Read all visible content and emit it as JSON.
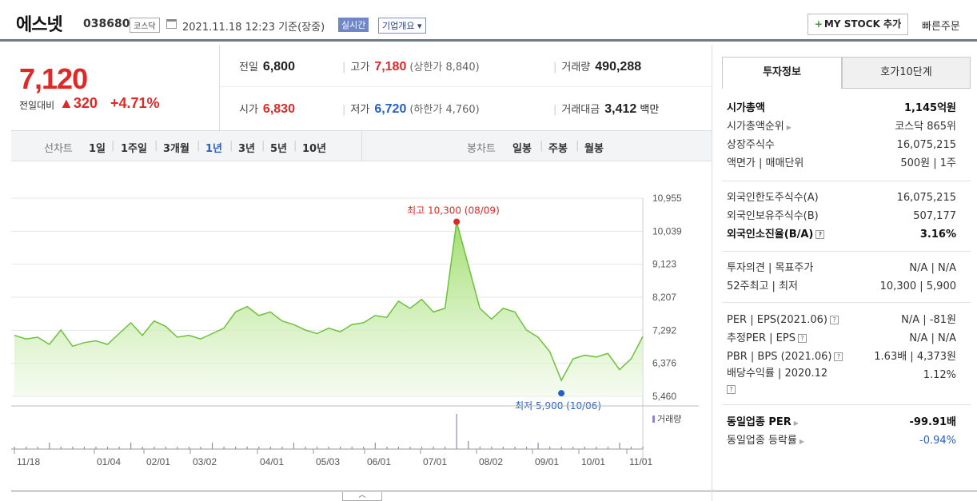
{
  "header": {
    "name": "에스넷",
    "code": "038680",
    "market": "코스닥",
    "date": "2021.11.18 12:23",
    "basis": "기준(장중)",
    "realtime": "실시간",
    "overview": "기업개요",
    "mystock": "MY STOCK 추가",
    "quick_order": "빠른주문"
  },
  "price": {
    "current": "7,120",
    "change_label": "전일대비",
    "change": "▲320",
    "percent": "+4.71%",
    "prev_label": "전일",
    "prev": "6,800",
    "high_label": "고가",
    "high": "7,180",
    "upper_limit": "(상한가 8,840)",
    "volume_label": "거래량",
    "volume": "490,288",
    "open_label": "시가",
    "open": "6,830",
    "low_label": "저가",
    "low": "6,720",
    "lower_limit": "(하한가 4,760)",
    "amount_label": "거래대금",
    "amount": "3,412",
    "amount_unit": "백만"
  },
  "period": {
    "line_label": "선차트",
    "line_opts": [
      "1일",
      "1주일",
      "3개월",
      "1년",
      "3년",
      "5년",
      "10년"
    ],
    "selected": "1년",
    "candle_label": "봉차트",
    "candle_opts": [
      "일봉",
      "주봉",
      "월봉"
    ]
  },
  "chart_data": {
    "type": "area",
    "yticks": [
      "10,955",
      "10,039",
      "9,123",
      "8,207",
      "7,292",
      "6,376",
      "5,460"
    ],
    "ylim": [
      5460,
      10955
    ],
    "xticks": [
      "11/18",
      "01/04",
      "02/01",
      "03/02",
      "04/01",
      "05/03",
      "06/01",
      "07/01",
      "08/02",
      "09/01",
      "10/01",
      "11/01"
    ],
    "high_label": "최고 10,300 (08/09)",
    "low_label": "최저 5,900 (10/06)",
    "volume_label": "거래량",
    "series": [
      {
        "x": "11/18",
        "y": 7150
      },
      {
        "x": "11/25",
        "y": 7050
      },
      {
        "x": "12/02",
        "y": 7100
      },
      {
        "x": "12/09",
        "y": 6900
      },
      {
        "x": "12/16",
        "y": 7300
      },
      {
        "x": "12/23",
        "y": 6850
      },
      {
        "x": "12/30",
        "y": 6950
      },
      {
        "x": "01/04",
        "y": 7000
      },
      {
        "x": "01/11",
        "y": 6900
      },
      {
        "x": "01/18",
        "y": 7200
      },
      {
        "x": "01/25",
        "y": 7500
      },
      {
        "x": "02/01",
        "y": 7150
      },
      {
        "x": "02/08",
        "y": 7550
      },
      {
        "x": "02/15",
        "y": 7400
      },
      {
        "x": "02/22",
        "y": 7100
      },
      {
        "x": "03/02",
        "y": 7150
      },
      {
        "x": "03/09",
        "y": 7050
      },
      {
        "x": "03/16",
        "y": 7200
      },
      {
        "x": "03/23",
        "y": 7350
      },
      {
        "x": "04/01",
        "y": 7800
      },
      {
        "x": "04/08",
        "y": 7950
      },
      {
        "x": "04/15",
        "y": 7700
      },
      {
        "x": "04/22",
        "y": 7800
      },
      {
        "x": "04/29",
        "y": 7550
      },
      {
        "x": "05/03",
        "y": 7450
      },
      {
        "x": "05/10",
        "y": 7300
      },
      {
        "x": "05/17",
        "y": 7200
      },
      {
        "x": "05/24",
        "y": 7350
      },
      {
        "x": "06/01",
        "y": 7250
      },
      {
        "x": "06/08",
        "y": 7450
      },
      {
        "x": "06/15",
        "y": 7500
      },
      {
        "x": "06/22",
        "y": 7700
      },
      {
        "x": "07/01",
        "y": 7650
      },
      {
        "x": "07/08",
        "y": 8100
      },
      {
        "x": "07/15",
        "y": 7900
      },
      {
        "x": "07/22",
        "y": 8150
      },
      {
        "x": "07/29",
        "y": 7800
      },
      {
        "x": "08/02",
        "y": 7900
      },
      {
        "x": "08/09",
        "y": 10300
      },
      {
        "x": "08/16",
        "y": 9100
      },
      {
        "x": "08/23",
        "y": 7900
      },
      {
        "x": "08/30",
        "y": 7600
      },
      {
        "x": "09/01",
        "y": 7900
      },
      {
        "x": "09/08",
        "y": 7800
      },
      {
        "x": "09/15",
        "y": 7300
      },
      {
        "x": "09/22",
        "y": 7100
      },
      {
        "x": "10/01",
        "y": 6700
      },
      {
        "x": "10/06",
        "y": 5900
      },
      {
        "x": "10/13",
        "y": 6500
      },
      {
        "x": "10/20",
        "y": 6600
      },
      {
        "x": "10/27",
        "y": 6550
      },
      {
        "x": "11/01",
        "y": 6650
      },
      {
        "x": "11/08",
        "y": 6200
      },
      {
        "x": "11/15",
        "y": 6500
      },
      {
        "x": "11/18",
        "y": 7120
      }
    ]
  },
  "tabs": [
    "투자정보",
    "호가10단계"
  ],
  "invest": [
    {
      "k": "시가총액",
      "v": "1,145억원",
      "bold": true
    },
    {
      "k": "시가총액순위",
      "v": "코스닥 865위",
      "tri": true
    },
    {
      "k": "상장주식수",
      "v": "16,075,215"
    },
    {
      "k": "액면가 | 매매단위",
      "v": "500원 | 1주"
    }
  ],
  "foreign": [
    {
      "k": "외국인한도주식수(A)",
      "v": "16,075,215"
    },
    {
      "k": "외국인보유주식수(B)",
      "v": "507,177"
    },
    {
      "k": "외국인소진율(B/A)",
      "v": "3.16%",
      "bold": true,
      "q": true
    }
  ],
  "opinion": [
    {
      "k": "투자의견 | 목표주가",
      "v": "N/A | N/A"
    },
    {
      "k": "52주최고 | 최저",
      "v": "10,300 | 5,900"
    }
  ],
  "valuation": [
    {
      "k": "PER | EPS(2021.06)",
      "v": "N/A | -81원",
      "q": true
    },
    {
      "k": "추정PER | EPS",
      "v": "N/A | N/A",
      "q": true
    },
    {
      "k": "PBR | BPS (2021.06)",
      "v": "1.63배 | 4,373원",
      "q": true
    },
    {
      "k": "배당수익률 | 2020.12",
      "v": "1.12%",
      "q2": true
    }
  ],
  "industry": [
    {
      "k": "동일업종 PER",
      "v": "-99.91배",
      "bold": true,
      "tri": true
    },
    {
      "k": "동일업종 등락률",
      "v": "-0.94%",
      "tri": true,
      "neg": true
    }
  ],
  "colors": {
    "up": "#e12828",
    "down": "#2460c7",
    "area": "#8fd65a"
  }
}
